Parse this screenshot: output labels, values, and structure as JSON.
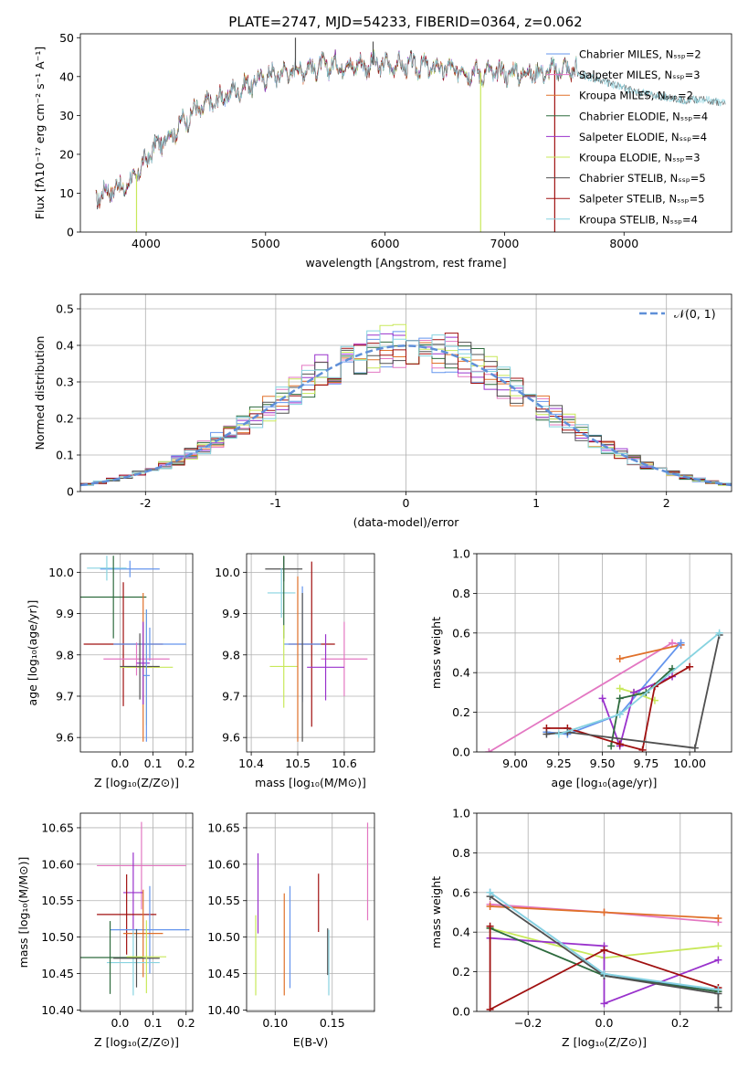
{
  "figure_title": "PLATE=2747, MJD=54233, FIBERID=0364, z=0.062",
  "colors": {
    "chabrier_miles": "#6495ed",
    "salpeter_miles": "#e377c2",
    "kroupa_miles": "#e0702a",
    "chabrier_elodie": "#2e6b3e",
    "salpeter_elodie": "#9932cc",
    "kroupa_elodie": "#c8e85a",
    "chabrier_stelib": "#505050",
    "salpeter_stelib": "#a01010",
    "kroupa_stelib": "#87d3e0",
    "gaussian": "#5f8fd8",
    "grid": "#b0b0b0"
  },
  "chart_data": [
    {
      "id": "spectrum",
      "type": "line",
      "title": "PLATE=2747, MJD=54233, FIBERID=0364, z=0.062",
      "xlabel": "wavelength [Angstrom, rest frame]",
      "ylabel": "Flux [fλ10⁻¹⁷ erg cm⁻² s⁻¹ A⁻¹]",
      "xlim": [
        3450,
        8900
      ],
      "ylim": [
        0,
        51
      ],
      "xticks": [
        4000,
        5000,
        6000,
        7000,
        8000
      ],
      "yticks": [
        0,
        10,
        20,
        30,
        40,
        50
      ],
      "grid": false,
      "legend_position": "right",
      "legend": [
        {
          "text": "Chabrier MILES, Nₛₛₚ=2",
          "color_key": "chabrier_miles"
        },
        {
          "text": "Salpeter MILES, Nₛₛₚ=3",
          "color_key": "salpeter_miles"
        },
        {
          "text": "Kroupa MILES, Nₛₛₚ=2",
          "color_key": "kroupa_miles"
        },
        {
          "text": "Chabrier ELODIE, Nₛₛₚ=4",
          "color_key": "chabrier_elodie"
        },
        {
          "text": "Salpeter ELODIE, Nₛₛₚ=4",
          "color_key": "salpeter_elodie"
        },
        {
          "text": "Kroupa ELODIE, Nₛₛₚ=3",
          "color_key": "kroupa_elodie"
        },
        {
          "text": "Chabrier STELIB, Nₛₛₚ=5",
          "color_key": "chabrier_stelib"
        },
        {
          "text": "Salpeter STELIB, Nₛₛₚ=5",
          "color_key": "salpeter_stelib"
        },
        {
          "text": "Kroupa STELIB, Nₛₛₚ=4",
          "color_key": "kroupa_stelib"
        }
      ],
      "continuum": {
        "x": [
          3580,
          3700,
          3850,
          3950,
          4050,
          4200,
          4400,
          4600,
          4800,
          5000,
          5300,
          5600,
          5900,
          6200,
          6500,
          6800,
          7100,
          7300,
          7500,
          7600
        ],
        "y": [
          9,
          11,
          12,
          16,
          21,
          25,
          31,
          34,
          37,
          40,
          42,
          43,
          43,
          43,
          42,
          41,
          41,
          41,
          42,
          42
        ]
      },
      "stelib_extension": {
        "x": [
          7500,
          7700,
          7900,
          8100,
          8300,
          8500,
          8700,
          8850
        ],
        "y": [
          42,
          40,
          38,
          36,
          35,
          34,
          34,
          33
        ]
      },
      "dropouts": [
        {
          "x": 3920,
          "y_bottom": 0,
          "color_key": "kroupa_elodie"
        },
        {
          "x": 6800,
          "y_bottom": 0,
          "color_key": "kroupa_elodie"
        },
        {
          "x": 7420,
          "y_bottom": 0,
          "color_key": "salpeter_stelib"
        },
        {
          "x": 5250,
          "y_top": 50,
          "color_key": "chabrier_stelib"
        },
        {
          "x": 5900,
          "y_top": 49,
          "color_key": "chabrier_stelib"
        }
      ]
    },
    {
      "id": "residuals",
      "type": "histogram",
      "xlabel": "(data-model)/error",
      "ylabel": "Normed distribution",
      "xlim": [
        -2.5,
        2.5
      ],
      "ylim": [
        0,
        0.54
      ],
      "xticks": [
        -2,
        -1,
        0,
        1,
        2
      ],
      "yticks": [
        0.0,
        0.1,
        0.2,
        0.3,
        0.4,
        0.5
      ],
      "grid": true,
      "legend_position": "top-right",
      "legend": [
        {
          "text": "𝒩(0, 1)",
          "color_key": "gaussian"
        }
      ],
      "bin_edges": [
        -2.5,
        2.5
      ],
      "n_bins": 50,
      "gaussian": {
        "mu": 0,
        "sigma": 1
      },
      "series_keys": [
        "chabrier_miles",
        "salpeter_miles",
        "kroupa_miles",
        "chabrier_elodie",
        "salpeter_elodie",
        "kroupa_elodie",
        "chabrier_stelib",
        "salpeter_stelib",
        "kroupa_stelib"
      ]
    },
    {
      "id": "age_vs_z",
      "type": "scatter_errorbar",
      "xlabel": "Z [log₁₀(Z/Z⊙)]",
      "ylabel": "age  [log₁₀(age/yr)]",
      "xlim": [
        -0.12,
        0.22
      ],
      "ylim": [
        9.565,
        10.045
      ],
      "xticks": [
        0.0,
        0.1,
        0.2
      ],
      "yticks": [
        9.6,
        9.7,
        9.8,
        9.9,
        10.0
      ],
      "xticklabels": [
        "0.0",
        "0.1",
        "0.2"
      ],
      "yticklabels": [
        "9.6",
        "9.7",
        "9.8",
        "9.9",
        "10.0"
      ],
      "grid": true,
      "points": [
        {
          "key": "chabrier_miles",
          "x": 0.03,
          "xerr": 0.09,
          "y": 10.008,
          "yerr": 0.02
        },
        {
          "key": "kroupa_stelib",
          "x": -0.04,
          "xerr": 0.06,
          "y": 10.01,
          "yerr": 0.03
        },
        {
          "key": "chabrier_elodie",
          "x": -0.02,
          "xerr": 0.1,
          "y": 9.94,
          "yerr": 0.1
        },
        {
          "key": "salpeter_stelib",
          "x": 0.01,
          "xerr": 0.12,
          "y": 9.826,
          "yerr": 0.15
        },
        {
          "key": "chabrier_miles",
          "x": 0.09,
          "xerr": 0.11,
          "y": 9.826,
          "yerr": 0.04
        },
        {
          "key": "kroupa_miles",
          "x": 0.07,
          "xerr": 0.05,
          "y": 9.77,
          "yerr": 0.18
        },
        {
          "key": "kroupa_elodie",
          "x": 0.08,
          "xerr": 0.08,
          "y": 9.77,
          "yerr": 0.14
        },
        {
          "key": "salpeter_miles",
          "x": 0.05,
          "xerr": 0.1,
          "y": 9.79,
          "yerr": 0.04
        },
        {
          "key": "salpeter_elodie",
          "x": 0.07,
          "xerr": 0.02,
          "y": 9.78,
          "yerr": 0.1
        },
        {
          "key": "chabrier_stelib",
          "x": 0.06,
          "xerr": 0.06,
          "y": 9.772,
          "yerr": 0.08
        },
        {
          "key": "chabrier_miles",
          "x": 0.08,
          "xerr": 0.01,
          "y": 9.75,
          "yerr": 0.16
        }
      ]
    },
    {
      "id": "age_vs_mass",
      "type": "scatter_errorbar",
      "xlabel": "mass [log₁₀(M/M⊙)]",
      "ylabel": "",
      "xlim": [
        10.39,
        10.665
      ],
      "ylim": [
        9.565,
        10.045
      ],
      "xticks": [
        10.4,
        10.5,
        10.6
      ],
      "yticks": [
        9.6,
        9.7,
        9.8,
        9.9,
        10.0
      ],
      "xticklabels": [
        "10.4",
        "10.5",
        "10.6"
      ],
      "yticklabels": [
        "9.6",
        "9.7",
        "9.8",
        "9.9",
        "10.0"
      ],
      "grid": true,
      "points": [
        {
          "key": "chabrier_stelib",
          "x": 10.47,
          "xerr": 0.04,
          "y": 10.008,
          "yerr": 0.03
        },
        {
          "key": "kroupa_stelib",
          "x": 10.465,
          "xerr": 0.03,
          "y": 9.95,
          "yerr": 0.06
        },
        {
          "key": "chabrier_elodie",
          "x": 10.47,
          "xerr": 0.0,
          "y": 9.94,
          "yerr": 0.1
        },
        {
          "key": "salpeter_stelib",
          "x": 10.53,
          "xerr": 0.05,
          "y": 9.826,
          "yerr": 0.2
        },
        {
          "key": "chabrier_miles",
          "x": 10.51,
          "xerr": 0.04,
          "y": 9.826,
          "yerr": 0.14
        },
        {
          "key": "salpeter_miles",
          "x": 10.6,
          "xerr": 0.05,
          "y": 9.79,
          "yerr": 0.09
        },
        {
          "key": "salpeter_elodie",
          "x": 10.56,
          "xerr": 0.04,
          "y": 9.77,
          "yerr": 0.08
        },
        {
          "key": "kroupa_elodie",
          "x": 10.47,
          "xerr": 0.03,
          "y": 9.772,
          "yerr": 0.1
        },
        {
          "key": "kroupa_miles",
          "x": 10.5,
          "xerr": 0.0,
          "y": 9.79,
          "yerr": 0.2
        },
        {
          "key": "chabrier_stelib",
          "x": 10.51,
          "xerr": 0.0,
          "y": 9.77,
          "yerr": 0.18
        }
      ]
    },
    {
      "id": "massweight_vs_age",
      "type": "line",
      "xlabel": "age  [log₁₀(age/yr)]",
      "ylabel": "mass weight",
      "xlim": [
        8.78,
        10.24
      ],
      "ylim": [
        0,
        1.0
      ],
      "xticks": [
        9.0,
        9.25,
        9.5,
        9.75,
        10.0
      ],
      "yticks": [
        0.0,
        0.2,
        0.4,
        0.6,
        0.8,
        1.0
      ],
      "xticklabels": [
        "9.00",
        "9.25",
        "9.50",
        "9.75",
        "10.00"
      ],
      "yticklabels": [
        "0.0",
        "0.2",
        "0.4",
        "0.6",
        "0.8",
        "1.0"
      ],
      "grid": true,
      "series": [
        {
          "key": "salpeter_miles",
          "x": [
            8.85,
            9.9,
            9.95
          ],
          "y": [
            0.0,
            0.55,
            0.54
          ]
        },
        {
          "key": "kroupa_miles",
          "x": [
            9.6,
            9.95
          ],
          "y": [
            0.47,
            0.54
          ]
        },
        {
          "key": "chabrier_miles",
          "x": [
            9.18,
            9.3,
            9.6,
            9.95
          ],
          "y": [
            0.1,
            0.09,
            0.19,
            0.55
          ]
        },
        {
          "key": "kroupa_elodie",
          "x": [
            9.6,
            9.68,
            9.8
          ],
          "y": [
            0.32,
            0.3,
            0.26
          ]
        },
        {
          "key": "salpeter_elodie",
          "x": [
            9.5,
            9.6,
            9.68,
            9.9
          ],
          "y": [
            0.27,
            0.03,
            0.3,
            0.38
          ]
        },
        {
          "key": "chabrier_elodie",
          "x": [
            9.55,
            9.6,
            9.75,
            9.9
          ],
          "y": [
            0.03,
            0.27,
            0.3,
            0.42
          ]
        },
        {
          "key": "salpeter_stelib",
          "x": [
            9.18,
            9.3,
            9.6,
            9.73,
            9.8,
            10.0
          ],
          "y": [
            0.12,
            0.12,
            0.04,
            0.01,
            0.33,
            0.43
          ]
        },
        {
          "key": "chabrier_stelib",
          "x": [
            9.18,
            9.3,
            10.03,
            10.17
          ],
          "y": [
            0.09,
            0.1,
            0.02,
            0.59
          ]
        },
        {
          "key": "kroupa_stelib",
          "x": [
            9.25,
            9.6,
            10.17
          ],
          "y": [
            0.09,
            0.19,
            0.6
          ]
        }
      ]
    },
    {
      "id": "mass_vs_z",
      "type": "scatter_errorbar",
      "xlabel": "Z [log₁₀(Z/Z⊙)]",
      "ylabel": "mass [log₁₀(M/M⊙)]",
      "xlim": [
        -0.12,
        0.22
      ],
      "ylim": [
        10.398,
        10.67
      ],
      "xticks": [
        0.0,
        0.1,
        0.2
      ],
      "yticks": [
        10.4,
        10.45,
        10.5,
        10.55,
        10.6,
        10.65
      ],
      "xticklabels": [
        "0.0",
        "0.1",
        "0.2"
      ],
      "yticklabels": [
        "10.40",
        "10.45",
        "10.50",
        "10.55",
        "10.60",
        "10.65"
      ],
      "grid": true,
      "points": [
        {
          "key": "salpeter_miles",
          "x": 0.065,
          "xerr": 0.135,
          "y": 10.598,
          "yerr": 0.06
        },
        {
          "key": "salpeter_elodie",
          "x": 0.04,
          "xerr": 0.03,
          "y": 10.561,
          "yerr": 0.055
        },
        {
          "key": "salpeter_stelib",
          "x": 0.02,
          "xerr": 0.09,
          "y": 10.531,
          "yerr": 0.055
        },
        {
          "key": "chabrier_miles",
          "x": 0.09,
          "xerr": 0.12,
          "y": 10.51,
          "yerr": 0.06
        },
        {
          "key": "kroupa_miles",
          "x": 0.07,
          "xerr": 0.06,
          "y": 10.505,
          "yerr": 0.06
        },
        {
          "key": "kroupa_stelib",
          "x": 0.04,
          "xerr": 0.08,
          "y": 10.465,
          "yerr": 0.045
        },
        {
          "key": "chabrier_elodie",
          "x": -0.03,
          "xerr": 0.1,
          "y": 10.472,
          "yerr": 0.05
        },
        {
          "key": "chabrier_stelib",
          "x": 0.05,
          "xerr": 0.07,
          "y": 10.471,
          "yerr": 0.04
        },
        {
          "key": "kroupa_elodie",
          "x": 0.08,
          "xerr": 0.06,
          "y": 10.473,
          "yerr": 0.05
        }
      ]
    },
    {
      "id": "mass_vs_ebv",
      "type": "scatter_errorbar",
      "xlabel": "E(B-V)",
      "ylabel": "",
      "xlim": [
        0.075,
        0.187
      ],
      "ylim": [
        10.398,
        10.67
      ],
      "xticks": [
        0.1,
        0.15
      ],
      "yticks": [
        10.4,
        10.45,
        10.5,
        10.55,
        10.6,
        10.65
      ],
      "xticklabels": [
        "0.10",
        "0.15"
      ],
      "yticklabels": [
        "10.40",
        "10.45",
        "10.50",
        "10.55",
        "10.60",
        "10.65"
      ],
      "grid": true,
      "points": [
        {
          "key": "salpeter_elodie",
          "x": 0.085,
          "xerr": 0,
          "y": 10.56,
          "yerr": 0.055
        },
        {
          "key": "kroupa_elodie",
          "x": 0.083,
          "xerr": 0,
          "y": 10.475,
          "yerr": 0.055
        },
        {
          "key": "kroupa_miles",
          "x": 0.108,
          "xerr": 0,
          "y": 10.49,
          "yerr": 0.07
        },
        {
          "key": "chabrier_miles",
          "x": 0.113,
          "xerr": 0,
          "y": 10.5,
          "yerr": 0.07
        },
        {
          "key": "salpeter_stelib",
          "x": 0.138,
          "xerr": 0,
          "y": 10.547,
          "yerr": 0.04
        },
        {
          "key": "chabrier_stelib",
          "x": 0.146,
          "xerr": 0,
          "y": 10.48,
          "yerr": 0.032
        },
        {
          "key": "kroupa_stelib",
          "x": 0.147,
          "xerr": 0,
          "y": 10.465,
          "yerr": 0.045
        },
        {
          "key": "salpeter_miles",
          "x": 0.181,
          "xerr": 0,
          "y": 10.59,
          "yerr": 0.067
        }
      ]
    },
    {
      "id": "massweight_vs_z",
      "type": "line",
      "xlabel": "Z [log₁₀(Z/Z⊙)]",
      "ylabel": "mass weight",
      "xlim": [
        -0.335,
        0.335
      ],
      "ylim": [
        0,
        1.0
      ],
      "xticks": [
        -0.2,
        0.0,
        0.2
      ],
      "yticks": [
        0.0,
        0.2,
        0.4,
        0.6,
        0.8,
        1.0
      ],
      "xticklabels": [
        "−0.2",
        "0.0",
        "0.2"
      ],
      "yticklabels": [
        "0.0",
        "0.2",
        "0.4",
        "0.6",
        "0.8",
        "1.0"
      ],
      "grid": true,
      "series": [
        {
          "key": "salpeter_miles",
          "x": [
            -0.3,
            0.0,
            0.3
          ],
          "y": [
            0.54,
            0.5,
            0.45
          ]
        },
        {
          "key": "kroupa_miles",
          "x": [
            -0.3,
            0.0,
            0.3
          ],
          "y": [
            0.53,
            0.5,
            0.47
          ]
        },
        {
          "key": "chabrier_miles",
          "x": [
            -0.3,
            0.0,
            0.3
          ],
          "y": [
            0.6,
            0.19,
            0.1
          ]
        },
        {
          "key": "kroupa_elodie",
          "x": [
            -0.3,
            0.0,
            0.3
          ],
          "y": [
            0.42,
            0.27,
            0.33
          ]
        },
        {
          "key": "salpeter_elodie",
          "x": [
            -0.3,
            0.0,
            0.0,
            0.3
          ],
          "y": [
            0.37,
            0.33,
            0.04,
            0.26
          ]
        },
        {
          "key": "chabrier_elodie",
          "x": [
            -0.3,
            0.0,
            0.3
          ],
          "y": [
            0.42,
            0.18,
            0.1
          ]
        },
        {
          "key": "salpeter_stelib",
          "x": [
            -0.3,
            -0.3,
            0.0,
            0.3
          ],
          "y": [
            0.43,
            0.01,
            0.31,
            0.12
          ]
        },
        {
          "key": "chabrier_stelib",
          "x": [
            -0.3,
            0.0,
            0.3,
            0.3
          ],
          "y": [
            0.58,
            0.18,
            0.09,
            0.02
          ]
        },
        {
          "key": "kroupa_stelib",
          "x": [
            -0.3,
            0.0,
            0.3
          ],
          "y": [
            0.6,
            0.19,
            0.11
          ]
        }
      ]
    }
  ]
}
